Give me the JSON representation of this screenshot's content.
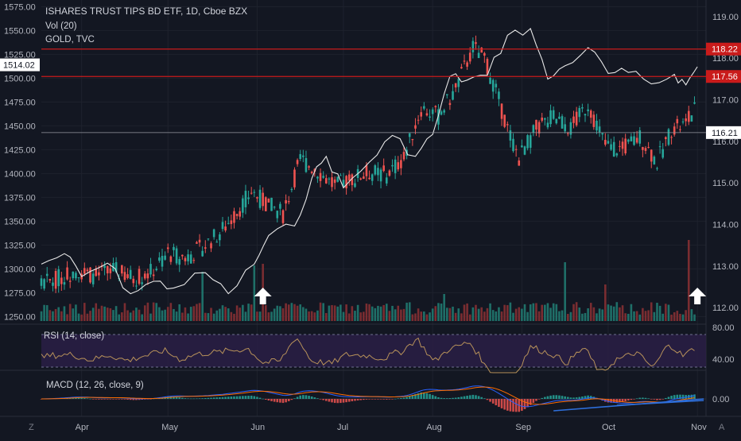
{
  "legend": {
    "symbol_title": "ISHARES TRUST TIPS BD ETF, 1D, Cboe BZX",
    "volume": "Vol (20)",
    "overlay": "GOLD, TVC",
    "rsi": "RSI (14, close)",
    "macd": "MACD (12, 26, close, 9)"
  },
  "colors": {
    "background": "#131722",
    "up": "#26a69a",
    "down": "#ef5350",
    "volume_up": "#1f6f68",
    "volume_down": "#7a2d31",
    "gold_line": "#e8e8e8",
    "resistance": "#c91b1b",
    "rsi_line": "#b8925a",
    "rsi_band": "#3b2d5a",
    "macd_line": "#2962ff",
    "signal_line": "#ff6d00",
    "trendline": "#2e6fdb",
    "arrow": "#ffffff"
  },
  "left_axis_labels": [
    "1575.00",
    "1550.00",
    "1525.00",
    "1500.00",
    "1475.00",
    "1450.00",
    "1425.00",
    "1400.00",
    "1375.00",
    "1350.00",
    "1325.00",
    "1300.00",
    "1275.00",
    "1250.00"
  ],
  "left_axis_marker": "1514.02",
  "right_axis_labels": [
    "119.00",
    "118.00",
    "117.00",
    "116.00",
    "115.00",
    "114.00",
    "113.00",
    "112.00"
  ],
  "price_tags": [
    {
      "text": "118.22",
      "value": 118.22,
      "kind": "resistance"
    },
    {
      "text": "117.56",
      "value": 117.56,
      "kind": "resistance"
    },
    {
      "text": "116.21",
      "value": 116.21,
      "kind": "last"
    }
  ],
  "rsi_axis_labels": [
    "80.00",
    "40.00"
  ],
  "macd_axis_label": "0.00",
  "x_axis_labels": [
    "Apr",
    "May",
    "Jun",
    "Jul",
    "Aug",
    "Sep",
    "Oct",
    "Nov"
  ],
  "corner_left": "Z",
  "corner_right": "A",
  "chart_data": {
    "type": "candlestick",
    "title": "ISHARES TRUST TIPS BD ETF, 1D, Cboe BZX",
    "price_range": [
      111.6,
      119.4
    ],
    "gold_range": [
      1242,
      1582
    ],
    "resistance_levels": [
      118.22,
      117.56
    ],
    "last_price": 116.21,
    "gold_marker": 1514.02,
    "gold_series": [
      {
        "x": "Mar 18",
        "y": 1305
      },
      {
        "x": "Mar 26",
        "y": 1316
      },
      {
        "x": "Apr 1",
        "y": 1292
      },
      {
        "x": "Apr 10",
        "y": 1306
      },
      {
        "x": "Apr 18",
        "y": 1274
      },
      {
        "x": "Apr 26",
        "y": 1287
      },
      {
        "x": "May 3",
        "y": 1280
      },
      {
        "x": "May 14",
        "y": 1296
      },
      {
        "x": "May 22",
        "y": 1274
      },
      {
        "x": "May 31",
        "y": 1305
      },
      {
        "x": "Jun 5",
        "y": 1335
      },
      {
        "x": "Jun 14",
        "y": 1345
      },
      {
        "x": "Jun 20",
        "y": 1395
      },
      {
        "x": "Jun 25",
        "y": 1418
      },
      {
        "x": "Jul 1",
        "y": 1385
      },
      {
        "x": "Jul 10",
        "y": 1412
      },
      {
        "x": "Jul 18",
        "y": 1440
      },
      {
        "x": "Jul 26",
        "y": 1418
      },
      {
        "x": "Aug 1",
        "y": 1441
      },
      {
        "x": "Aug 7",
        "y": 1502
      },
      {
        "x": "Aug 13",
        "y": 1498
      },
      {
        "x": "Aug 20",
        "y": 1503
      },
      {
        "x": "Aug 27",
        "y": 1545
      },
      {
        "x": "Sep 4",
        "y": 1552
      },
      {
        "x": "Sep 10",
        "y": 1499
      },
      {
        "x": "Sep 16",
        "y": 1513
      },
      {
        "x": "Sep 24",
        "y": 1532
      },
      {
        "x": "Oct 1",
        "y": 1505
      },
      {
        "x": "Oct 8",
        "y": 1506
      },
      {
        "x": "Oct 16",
        "y": 1494
      },
      {
        "x": "Oct 24",
        "y": 1504
      },
      {
        "x": "Oct 28",
        "y": 1493
      },
      {
        "x": "Nov 1",
        "y": 1512
      }
    ],
    "arrows": [
      {
        "x": "Jun 3"
      },
      {
        "x": "Nov 1"
      }
    ],
    "rsi": {
      "range": [
        30,
        90
      ],
      "upper": 70,
      "lower": 30
    },
    "macd": {
      "zero": 0
    }
  },
  "plot": {
    "start": "2019-03-18",
    "first_tick": "2019-04-01",
    "end": "2019-11-04"
  }
}
